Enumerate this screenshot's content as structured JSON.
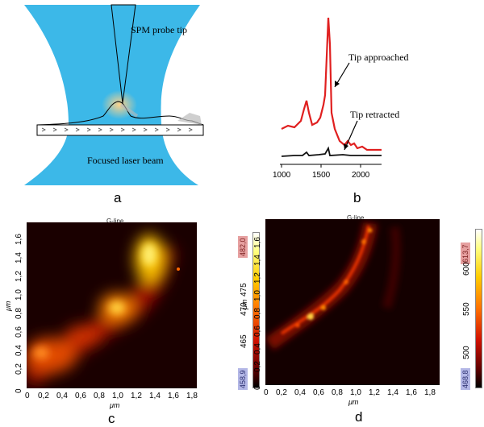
{
  "panel_a": {
    "letter": "a",
    "probe_label": "SPM probe tip",
    "laser_label": "Focused laser beam"
  },
  "panel_b": {
    "letter": "b",
    "approached_label": "Tip approached",
    "retracted_label": "Tip retracted",
    "x_ticks": [
      "1000",
      "1500",
      "2000"
    ]
  },
  "panel_c": {
    "letter": "c",
    "map_title": "G-line",
    "ylabel": "μm",
    "xlabel": "μm",
    "x_ticks": [
      "0",
      "0,2",
      "0,4",
      "0,6",
      "0,8",
      "1,0",
      "1,2",
      "1,4",
      "1,6",
      "1,8"
    ],
    "y_ticks": [
      "0",
      "0,2",
      "0,4",
      "0,6",
      "0,8",
      "1,0",
      "1,2",
      "1,4",
      "1,6"
    ],
    "colorbar_max": "482,0",
    "colorbar_min": "458,9",
    "colorbar_ticks": [
      "475",
      "470",
      "465"
    ]
  },
  "panel_d": {
    "letter": "d",
    "map_title": "G-line",
    "ylabel": "μm",
    "xlabel": "μm",
    "x_ticks": [
      "0",
      "0,2",
      "0,4",
      "0,6",
      "0,8",
      "1,0",
      "1,2",
      "1,4",
      "1,6",
      "1,8"
    ],
    "y_ticks": [
      "0",
      "0,2",
      "0,4",
      "0,6",
      "0,8",
      "1,0",
      "1,2",
      "1,4",
      "1,6"
    ],
    "colorbar_max": "613,7",
    "colorbar_min": "468,8",
    "colorbar_ticks": [
      "600",
      "550",
      "500"
    ]
  }
}
